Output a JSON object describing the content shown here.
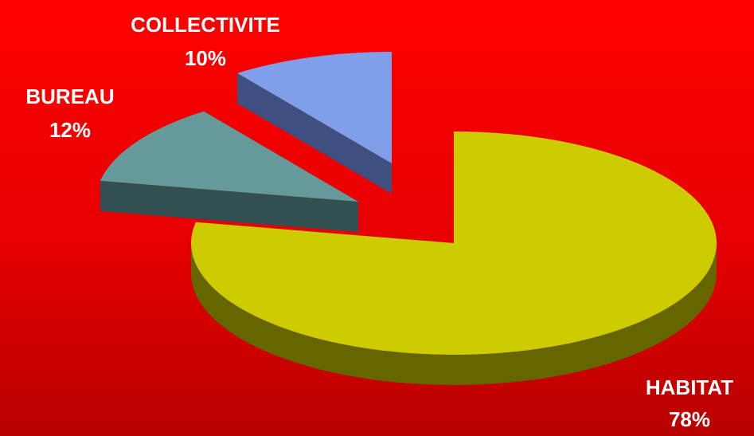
{
  "chart_data": {
    "type": "pie",
    "style": "3d-exploded",
    "background_color": "#e00000",
    "slices": [
      {
        "category": "HABITAT",
        "value": 78,
        "value_label": "78%",
        "color": "#cccc00",
        "side_color": "#666600"
      },
      {
        "category": "BUREAU",
        "value": 12,
        "value_label": "12%",
        "color": "#669999",
        "side_color": "#335050"
      },
      {
        "category": "COLLECTIVITE",
        "value": 10,
        "value_label": "10%",
        "color": "#7f9fe8",
        "side_color": "#3f5080"
      }
    ]
  }
}
